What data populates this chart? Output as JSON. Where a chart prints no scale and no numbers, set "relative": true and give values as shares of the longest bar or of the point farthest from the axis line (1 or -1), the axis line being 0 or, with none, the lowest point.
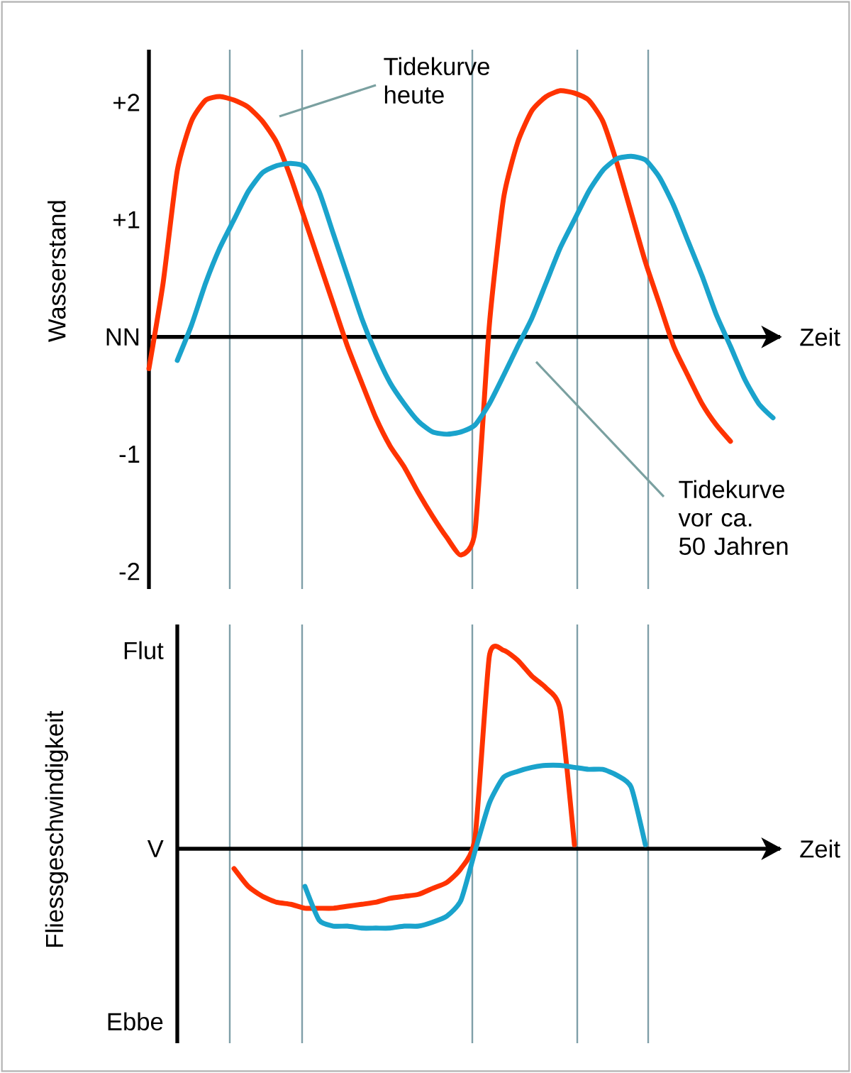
{
  "chart_data": [
    {
      "type": "line",
      "ylabel": "Wasserstand",
      "xlabel": "Zeit",
      "tick_labels": "y",
      "categories": [
        null,
        null,
        null,
        null,
        null,
        null,
        null,
        null,
        null,
        null,
        null,
        null,
        null,
        null,
        null,
        null,
        null,
        null,
        null,
        null,
        null,
        null,
        null,
        null,
        null,
        null,
        null,
        null,
        null,
        null,
        null,
        null,
        null,
        null,
        null,
        null,
        null,
        null,
        null,
        null,
        null,
        null,
        null,
        null,
        null
      ],
      "ylim": [
        -2.15,
        2.45
      ],
      "yticks": [
        {
          "value": 2,
          "label": "+2"
        },
        {
          "value": 1,
          "label": "+1"
        },
        {
          "value": 0,
          "label": "NN"
        },
        {
          "value": -1,
          "label": "-1"
        },
        {
          "value": -2,
          "label": "-2"
        }
      ],
      "series": [
        {
          "color": "#ff3300",
          "values": [
            -0.27,
            0.46,
            1.42,
            1.84,
            2.02,
            2.05,
            2.02,
            1.96,
            1.84,
            1.66,
            1.36,
            1.0,
            0.64,
            0.28,
            -0.08,
            -0.39,
            -0.69,
            -0.93,
            -1.11,
            -1.33,
            -1.53,
            -1.71,
            -1.86,
            -1.65,
            0.1,
            1.18,
            1.66,
            1.93,
            2.05,
            2.1,
            2.08,
            2.02,
            1.84,
            1.48,
            1.06,
            0.64,
            0.28,
            -0.08,
            -0.33,
            -0.57,
            -0.75,
            -0.89,
            null,
            null,
            null
          ]
        },
        {
          "color": "#1aa3cc",
          "values": [
            null,
            null,
            -0.2,
            0.1,
            0.46,
            0.76,
            1.0,
            1.24,
            1.4,
            1.46,
            1.48,
            1.45,
            1.24,
            0.88,
            0.52,
            0.16,
            -0.14,
            -0.39,
            -0.57,
            -0.72,
            -0.81,
            -0.83,
            -0.81,
            -0.75,
            -0.57,
            -0.33,
            -0.08,
            0.16,
            0.46,
            0.76,
            1.0,
            1.24,
            1.42,
            1.52,
            1.54,
            1.51,
            1.36,
            1.12,
            0.82,
            0.52,
            0.19,
            -0.08,
            -0.36,
            -0.57,
            -0.69
          ]
        }
      ],
      "annotations": [
        "Tidekurve heute",
        "Tidekurve vor ca. 50 Jahren"
      ]
    },
    {
      "type": "line",
      "ylabel": "Fliessgeschwindigkeit",
      "xlabel": "Zeit",
      "tick_labels": false,
      "relative": true,
      "categories": [
        null,
        null,
        null,
        null,
        null,
        null,
        null,
        null,
        null,
        null,
        null,
        null,
        null,
        null,
        null,
        null,
        null,
        null,
        null,
        null,
        null,
        null,
        null,
        null,
        null,
        null,
        null,
        null,
        null,
        null,
        null,
        null,
        null,
        null,
        null,
        null,
        null,
        null,
        null,
        null,
        null,
        null,
        null,
        null,
        null
      ],
      "series": [
        {
          "color": "#ff3300",
          "values": [
            null,
            null,
            null,
            null,
            null,
            null,
            -0.1,
            -0.19,
            -0.24,
            -0.27,
            -0.28,
            -0.3,
            -0.3,
            -0.3,
            -0.29,
            -0.28,
            -0.27,
            -0.25,
            -0.24,
            -0.23,
            -0.2,
            -0.17,
            -0.1,
            0.06,
            0.97,
            1.0,
            0.95,
            0.87,
            0.81,
            0.7,
            0.02,
            null,
            null,
            null,
            null,
            null,
            null,
            null,
            null,
            null,
            null,
            null,
            null,
            null,
            null
          ]
        },
        {
          "color": "#1aa3cc",
          "values": [
            null,
            null,
            null,
            null,
            null,
            null,
            null,
            null,
            null,
            null,
            null,
            -0.19,
            -0.36,
            -0.39,
            -0.39,
            -0.4,
            -0.4,
            -0.4,
            -0.39,
            -0.39,
            -0.37,
            -0.34,
            -0.26,
            -0.01,
            0.23,
            0.36,
            0.39,
            0.41,
            0.42,
            0.42,
            0.41,
            0.4,
            0.4,
            0.37,
            0.31,
            0.02,
            null,
            null,
            null,
            null,
            null,
            null,
            null,
            null,
            null
          ]
        }
      ],
      "annotations": [
        "Flut",
        "V",
        "Ebbe"
      ]
    }
  ]
}
